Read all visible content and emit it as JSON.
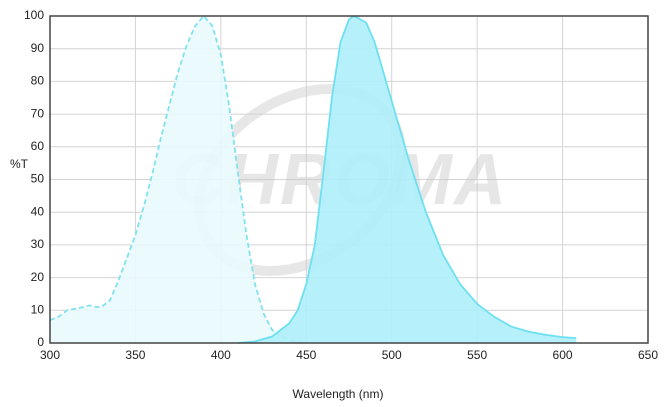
{
  "chart_data": {
    "type": "line",
    "watermark": "CHROMA",
    "x_label": "Wavelength (nm)",
    "y_label": "%T",
    "xlim": [
      300,
      650
    ],
    "xticks": [
      300,
      350,
      400,
      450,
      500,
      550,
      600,
      650
    ],
    "ylim": [
      0,
      100
    ],
    "yticks": [
      0,
      10,
      20,
      30,
      40,
      50,
      60,
      70,
      80,
      90,
      100
    ],
    "grid": true,
    "series": [
      {
        "color": "#80e2ef",
        "fill": "#e9f9fd",
        "dashed": true,
        "x": [
          300,
          305,
          310,
          315,
          320,
          323,
          327,
          330,
          335,
          340,
          345,
          350,
          355,
          360,
          365,
          370,
          375,
          380,
          385,
          390,
          395,
          400,
          405,
          410,
          415,
          420,
          425,
          430,
          435,
          440,
          445,
          450
        ],
        "values": [
          7,
          8,
          10,
          10.5,
          11,
          11.5,
          11,
          11,
          13,
          19,
          26,
          33,
          42,
          52,
          63,
          73,
          83,
          91,
          97,
          100,
          97,
          88,
          72,
          52,
          33,
          18,
          9,
          4,
          2,
          1,
          0.3,
          0
        ]
      },
      {
        "color": "#6ee0f0",
        "fill": "#aeeffb",
        "dashed": false,
        "x": [
          410,
          420,
          430,
          440,
          445,
          450,
          455,
          460,
          465,
          470,
          475,
          478,
          485,
          490,
          495,
          500,
          510,
          520,
          530,
          540,
          550,
          560,
          570,
          580,
          590,
          600,
          608
        ],
        "values": [
          0,
          0.5,
          2,
          6,
          10,
          18,
          30,
          52,
          75,
          92,
          99,
          100,
          98,
          92,
          83,
          74,
          56,
          40,
          27,
          18,
          12,
          8,
          5,
          3.5,
          2.5,
          1.8,
          1.5
        ]
      }
    ]
  }
}
